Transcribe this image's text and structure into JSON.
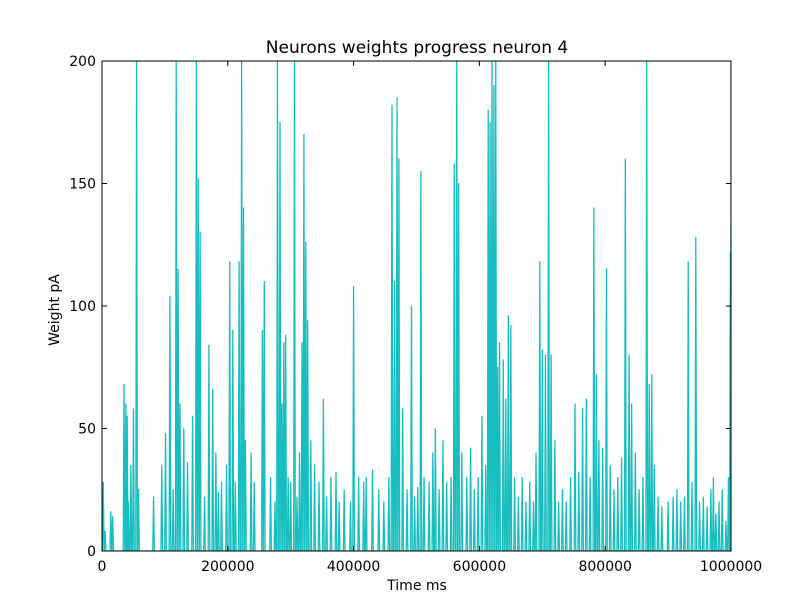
{
  "chart_data": {
    "type": "line",
    "title": "Neurons weights progress neuron 4",
    "xlabel": "Time ms",
    "ylabel": "Weight pA",
    "xlim": [
      0,
      1000000
    ],
    "ylim": [
      0,
      200
    ],
    "xticks": [
      0,
      200000,
      400000,
      600000,
      800000,
      1000000
    ],
    "yticks": [
      0,
      50,
      100,
      150,
      200
    ],
    "xtick_labels": [
      "0",
      "200000",
      "400000",
      "600000",
      "800000",
      "1000000"
    ],
    "ytick_labels": [
      "0",
      "50",
      "100",
      "150",
      "200"
    ],
    "grid": false,
    "line_color": "#17bebf",
    "series": [
      {
        "spikes": [
          [
            2000,
            28
          ],
          [
            5000,
            8
          ],
          [
            14000,
            16
          ],
          [
            17000,
            14
          ],
          [
            35000,
            68
          ],
          [
            38000,
            60
          ],
          [
            40000,
            55
          ],
          [
            42000,
            20
          ],
          [
            46000,
            35
          ],
          [
            50000,
            58
          ],
          [
            55000,
            200
          ],
          [
            58000,
            25
          ],
          [
            82000,
            22
          ],
          [
            95000,
            35
          ],
          [
            101000,
            48
          ],
          [
            108000,
            104
          ],
          [
            113000,
            25
          ],
          [
            118000,
            200
          ],
          [
            121000,
            115
          ],
          [
            124000,
            60
          ],
          [
            130000,
            50
          ],
          [
            136000,
            36
          ],
          [
            144000,
            55
          ],
          [
            150000,
            200
          ],
          [
            153000,
            152
          ],
          [
            156000,
            130
          ],
          [
            163000,
            22
          ],
          [
            170000,
            84
          ],
          [
            176000,
            66
          ],
          [
            181000,
            40
          ],
          [
            185000,
            24
          ],
          [
            190000,
            28
          ],
          [
            198000,
            35
          ],
          [
            203000,
            118
          ],
          [
            208000,
            90
          ],
          [
            212000,
            28
          ],
          [
            218000,
            118
          ],
          [
            222000,
            200
          ],
          [
            225000,
            140
          ],
          [
            228000,
            45
          ],
          [
            237000,
            40
          ],
          [
            242000,
            28
          ],
          [
            255000,
            90
          ],
          [
            258000,
            110
          ],
          [
            268000,
            30
          ],
          [
            275000,
            20
          ],
          [
            279000,
            200
          ],
          [
            283000,
            175
          ],
          [
            286000,
            60
          ],
          [
            289000,
            85
          ],
          [
            292000,
            88
          ],
          [
            296000,
            30
          ],
          [
            300000,
            28
          ],
          [
            306000,
            200
          ],
          [
            310000,
            22
          ],
          [
            314000,
            40
          ],
          [
            318000,
            85
          ],
          [
            321000,
            170
          ],
          [
            324000,
            126
          ],
          [
            327000,
            94
          ],
          [
            332000,
            45
          ],
          [
            338000,
            35
          ],
          [
            345000,
            28
          ],
          [
            352000,
            62
          ],
          [
            357000,
            22
          ],
          [
            364000,
            30
          ],
          [
            372000,
            32
          ],
          [
            377000,
            20
          ],
          [
            385000,
            25
          ],
          [
            395000,
            20
          ],
          [
            400000,
            108
          ],
          [
            408000,
            30
          ],
          [
            416000,
            28
          ],
          [
            420000,
            30
          ],
          [
            430000,
            33
          ],
          [
            440000,
            25
          ],
          [
            448000,
            20
          ],
          [
            456000,
            30
          ],
          [
            461000,
            182
          ],
          [
            465000,
            110
          ],
          [
            469000,
            185
          ],
          [
            472000,
            160
          ],
          [
            478000,
            58
          ],
          [
            485000,
            25
          ],
          [
            492000,
            100
          ],
          [
            497000,
            22
          ],
          [
            502000,
            26
          ],
          [
            507000,
            155
          ],
          [
            512000,
            30
          ],
          [
            520000,
            28
          ],
          [
            526000,
            40
          ],
          [
            530000,
            50
          ],
          [
            536000,
            25
          ],
          [
            542000,
            45
          ],
          [
            548000,
            28
          ],
          [
            555000,
            30
          ],
          [
            560000,
            158
          ],
          [
            564000,
            200
          ],
          [
            567000,
            150
          ],
          [
            572000,
            40
          ],
          [
            580000,
            30
          ],
          [
            586000,
            42
          ],
          [
            592000,
            25
          ],
          [
            598000,
            30
          ],
          [
            604000,
            55
          ],
          [
            610000,
            35
          ],
          [
            614000,
            180
          ],
          [
            617000,
            175
          ],
          [
            620000,
            200
          ],
          [
            623000,
            190
          ],
          [
            626000,
            200
          ],
          [
            629000,
            75
          ],
          [
            632000,
            85
          ],
          [
            638000,
            78
          ],
          [
            642000,
            62
          ],
          [
            646000,
            96
          ],
          [
            650000,
            92
          ],
          [
            656000,
            30
          ],
          [
            662000,
            22
          ],
          [
            668000,
            30
          ],
          [
            674000,
            20
          ],
          [
            680000,
            28
          ],
          [
            686000,
            20
          ],
          [
            690000,
            40
          ],
          [
            696000,
            118
          ],
          [
            700000,
            82
          ],
          [
            705000,
            80
          ],
          [
            710000,
            200
          ],
          [
            714000,
            80
          ],
          [
            720000,
            45
          ],
          [
            726000,
            20
          ],
          [
            732000,
            25
          ],
          [
            738000,
            20
          ],
          [
            745000,
            30
          ],
          [
            752000,
            60
          ],
          [
            758000,
            32
          ],
          [
            764000,
            58
          ],
          [
            770000,
            62
          ],
          [
            776000,
            30
          ],
          [
            782000,
            140
          ],
          [
            786000,
            72
          ],
          [
            790000,
            45
          ],
          [
            796000,
            42
          ],
          [
            802000,
            115
          ],
          [
            808000,
            35
          ],
          [
            814000,
            25
          ],
          [
            820000,
            30
          ],
          [
            826000,
            38
          ],
          [
            832000,
            160
          ],
          [
            838000,
            80
          ],
          [
            842000,
            60
          ],
          [
            848000,
            40
          ],
          [
            854000,
            25
          ],
          [
            860000,
            30
          ],
          [
            866000,
            200
          ],
          [
            870000,
            68
          ],
          [
            874000,
            72
          ],
          [
            878000,
            35
          ],
          [
            884000,
            22
          ],
          [
            890000,
            18
          ],
          [
            900000,
            20
          ],
          [
            908000,
            22
          ],
          [
            914000,
            25
          ],
          [
            920000,
            20
          ],
          [
            926000,
            22
          ],
          [
            932000,
            118
          ],
          [
            938000,
            28
          ],
          [
            944000,
            128
          ],
          [
            950000,
            20
          ],
          [
            956000,
            22
          ],
          [
            962000,
            18
          ],
          [
            968000,
            25
          ],
          [
            972000,
            30
          ],
          [
            976000,
            15
          ],
          [
            981000,
            20
          ],
          [
            986000,
            25
          ],
          [
            992000,
            12
          ],
          [
            996000,
            30
          ],
          [
            999000,
            122
          ],
          [
            1000000,
            135
          ]
        ]
      }
    ]
  }
}
